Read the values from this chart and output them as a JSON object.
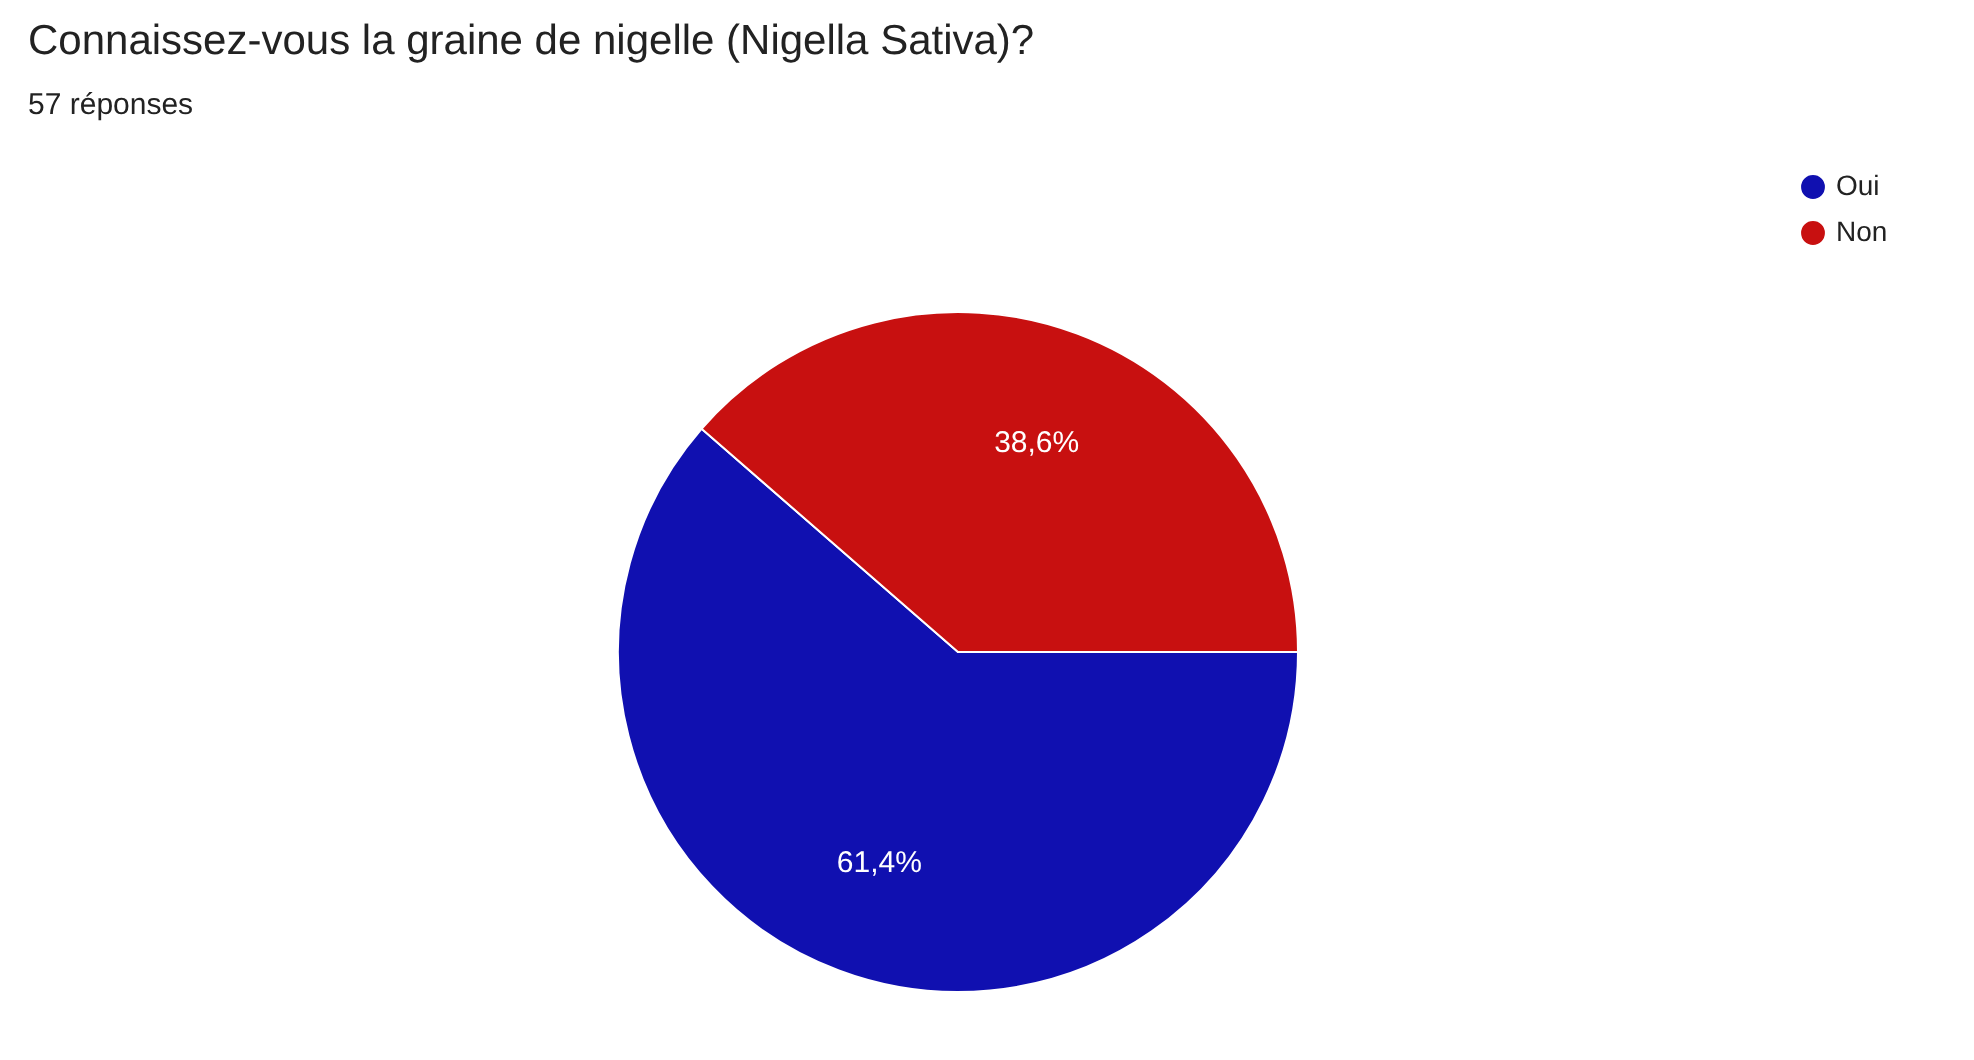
{
  "chart_data": {
    "type": "pie",
    "title": "Connaissez-vous la graine de nigelle (Nigella Sativa)?",
    "subtitle": "57 réponses",
    "categories": [
      "Oui",
      "Non"
    ],
    "values": [
      61.4,
      38.6
    ],
    "colors": [
      "#1010b0",
      "#c81010"
    ],
    "value_labels": [
      "61,4%",
      "38,6%"
    ],
    "legend": "top right"
  }
}
